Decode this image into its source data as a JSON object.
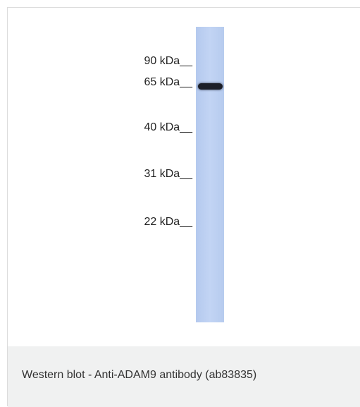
{
  "blot": {
    "markers": [
      "90 kDa__",
      "65 kDa__",
      "40 kDa__",
      "31 kDa__",
      "22 kDa__"
    ]
  },
  "caption": "Western blot - Anti-ADAM9 antibody (ab83835)"
}
